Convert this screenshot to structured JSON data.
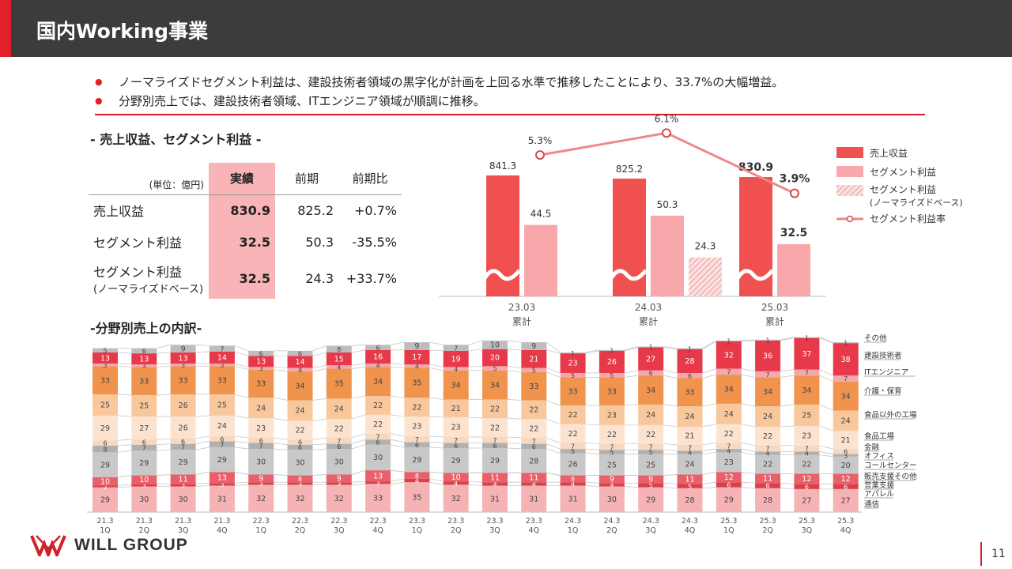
{
  "header": {
    "title": "国内Working事業"
  },
  "bullets": [
    "ノーマライズドセグメント利益は、建設技術者領域の黒字化が計画を上回る水準で推移したことにより、33.7%の大幅増益。",
    "分野別売上では、建設技術者領域、ITエンジニア領域が順調に推移。"
  ],
  "section1": {
    "title": "- 売上収益、セグメント利益 -"
  },
  "section2": {
    "title": "-分野別売上の内訳-"
  },
  "kpi_table": {
    "unit": "(単位：億円)",
    "headers": [
      "実績",
      "前期",
      "前期比"
    ],
    "rows": [
      {
        "label": "売上収益",
        "actual": "830.9",
        "prev": "825.2",
        "yoy": "+0.7%"
      },
      {
        "label": "セグメント利益",
        "actual": "32.5",
        "prev": "50.3",
        "yoy": "-35.5%"
      },
      {
        "label": "セグメント利益",
        "sublabel": "(ノーマライズドベース)",
        "actual": "32.5",
        "prev": "24.3",
        "yoy": "+33.7%"
      }
    ]
  },
  "chart_data": [
    {
      "type": "bar",
      "title": "",
      "categories": [
        [
          "23.03",
          "累計"
        ],
        [
          "24.03",
          "累計"
        ],
        [
          "25.03",
          "累計"
        ]
      ],
      "series": [
        {
          "name": "売上収益",
          "values": [
            841.3,
            825.2,
            830.9
          ],
          "color": "#f05050"
        },
        {
          "name": "セグメント利益",
          "values": [
            44.5,
            50.3,
            32.5
          ],
          "color": "#f8a8aa"
        },
        {
          "name": "セグメント利益(ノーマライズドベース)",
          "values": [
            null,
            24.3,
            null
          ],
          "color": "#f4c0c0"
        }
      ],
      "line_series": {
        "name": "セグメント利益率",
        "values": [
          5.3,
          6.1,
          3.9
        ],
        "labels": [
          "5.3%",
          "6.1%",
          "3.9%"
        ],
        "color": "#ee8888"
      },
      "value_labels": {
        "revenue": [
          "841.3",
          "825.2",
          "830.9"
        ],
        "profit": [
          "44.5",
          "50.3",
          "32.5"
        ],
        "normalized": [
          "",
          "24.3",
          ""
        ]
      },
      "legend": [
        {
          "label": "売上収益"
        },
        {
          "label": "セグメント利益"
        },
        {
          "label": "セグメント利益",
          "sublabel": "(ノーマライズドベース)"
        },
        {
          "label": "セグメント利益率"
        }
      ],
      "axis_break": true
    },
    {
      "type": "bar",
      "stacked": true,
      "title": "",
      "categories": [
        [
          "21.3",
          "1Q"
        ],
        [
          "21.3",
          "2Q"
        ],
        [
          "21.3",
          "3Q"
        ],
        [
          "21.3",
          "4Q"
        ],
        [
          "22.3",
          "1Q"
        ],
        [
          "22.3",
          "2Q"
        ],
        [
          "22.3",
          "3Q"
        ],
        [
          "22.3",
          "4Q"
        ],
        [
          "23.3",
          "1Q"
        ],
        [
          "23.3",
          "2Q"
        ],
        [
          "23.3",
          "3Q"
        ],
        [
          "23.3",
          "4Q"
        ],
        [
          "24.3",
          "1Q"
        ],
        [
          "24.3",
          "2Q"
        ],
        [
          "24.3",
          "3Q"
        ],
        [
          "24.3",
          "4Q"
        ],
        [
          "25.3",
          "1Q"
        ],
        [
          "25.3",
          "2Q"
        ],
        [
          "25.3",
          "3Q"
        ],
        [
          "25.3",
          "4Q"
        ]
      ],
      "series": [
        {
          "name": "通信",
          "color": "#f5b3b5",
          "values": [
            29,
            30,
            30,
            31,
            32,
            32,
            32,
            33,
            35,
            32,
            31,
            31,
            31,
            30,
            29,
            28,
            29,
            28,
            27,
            27
          ]
        },
        {
          "name": "アパレル",
          "color": "#d9414a",
          "values": [
            2,
            3,
            3,
            3,
            3,
            3,
            3,
            3,
            4,
            4,
            4,
            4,
            4,
            4,
            5,
            5,
            6,
            6,
            6,
            6
          ]
        },
        {
          "name": "営業支援",
          "color": "#e8606a",
          "values": [
            10,
            10,
            11,
            13,
            9,
            8,
            9,
            13,
            8,
            10,
            11,
            11,
            8,
            9,
            9,
            11,
            12,
            11,
            12,
            12
          ],
          "display": [
            "10",
            "10",
            "11",
            "13",
            "9",
            "8",
            "9",
            "13",
            "8",
            "10",
            "11",
            "11",
            "8",
            "9",
            "9",
            "11",
            "12",
            "11",
            "12",
            "12"
          ]
        },
        {
          "name": "販売支援その他",
          "color": "#f09ca0",
          "values": [
            0,
            0,
            0,
            0,
            0,
            0,
            0,
            0,
            0,
            0,
            0,
            0,
            0,
            0,
            0,
            0,
            0,
            0,
            0,
            0
          ]
        },
        {
          "name": "コールセンター",
          "color": "#c8c8c8",
          "values": [
            29,
            29,
            29,
            29,
            30,
            30,
            30,
            30,
            29,
            29,
            29,
            28,
            26,
            25,
            25,
            24,
            23,
            22,
            22,
            20
          ]
        },
        {
          "name": "オフィス",
          "color": "#b0b0b0",
          "values": [
            8,
            7,
            7,
            7,
            7,
            6,
            6,
            6,
            6,
            6,
            6,
            6,
            5,
            5,
            5,
            4,
            4,
            4,
            4,
            3
          ]
        },
        {
          "name": "金融",
          "color": "#f7d8c0",
          "values": [
            6,
            6,
            6,
            6,
            6,
            6,
            7,
            7,
            7,
            7,
            7,
            7,
            7,
            7,
            7,
            7,
            7,
            7,
            7,
            6
          ]
        },
        {
          "name": "食品工場",
          "color": "#fbe3d0",
          "values": [
            29,
            27,
            26,
            24,
            23,
            22,
            22,
            22,
            23,
            23,
            22,
            22,
            22,
            22,
            22,
            21,
            22,
            22,
            23,
            21
          ]
        },
        {
          "name": "食品以外の工場",
          "color": "#f8c89c",
          "values": [
            25,
            25,
            26,
            25,
            24,
            24,
            24,
            22,
            22,
            21,
            22,
            22,
            22,
            23,
            24,
            24,
            24,
            24,
            25,
            24
          ]
        },
        {
          "name": "介護・保育",
          "color": "#f0934c",
          "values": [
            33,
            33,
            33,
            33,
            33,
            34,
            35,
            34,
            35,
            34,
            34,
            33,
            33,
            33,
            34,
            33,
            34,
            34,
            34,
            34
          ]
        },
        {
          "name": "ITエンジニア",
          "color": "#f2a8ac",
          "values": [
            3,
            3,
            3,
            3,
            3,
            4,
            4,
            4,
            4,
            4,
            5,
            5,
            5,
            5,
            6,
            6,
            7,
            7,
            7,
            7
          ]
        },
        {
          "name": "建設技術者",
          "color": "#e8394a",
          "values": [
            13,
            13,
            13,
            14,
            13,
            14,
            15,
            16,
            17,
            19,
            20,
            21,
            23,
            26,
            27,
            28,
            32,
            36,
            37,
            38
          ]
        },
        {
          "name": "その他",
          "color": "#bdbdbd",
          "values": [
            5,
            6,
            9,
            7,
            6,
            6,
            8,
            6,
            9,
            7,
            10,
            9,
            1,
            1,
            1,
            1,
            1,
            1,
            1,
            1
          ]
        }
      ],
      "legend": [
        "その他",
        "建設技術者",
        "ITエンジニア",
        "介護・保育",
        "食品以外の工場",
        "食品工場",
        "金融",
        "オフィス",
        "コールセンター",
        "販売支援その他",
        "営業支援",
        "アパレル",
        "通信"
      ]
    }
  ],
  "footer": {
    "logo_text": "WILL GROUP",
    "page_number": "11"
  },
  "colors": {
    "accent": "#e0202a",
    "header_bg": "#3c3c3c"
  }
}
